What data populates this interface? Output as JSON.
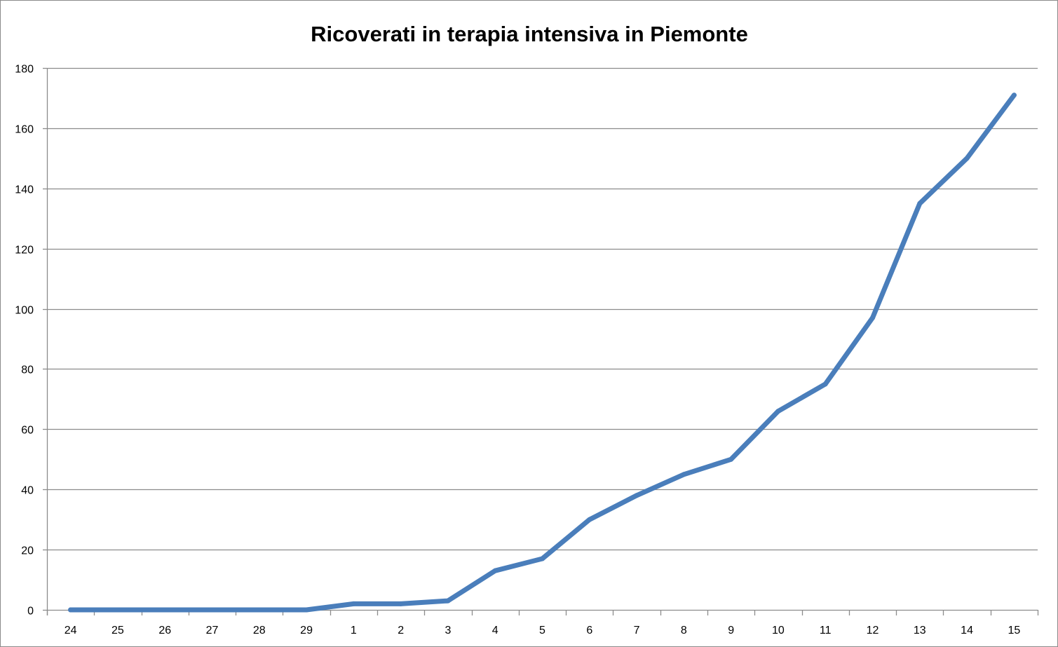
{
  "chart_data": {
    "type": "line",
    "title": "Ricoverati in terapia intensiva in Piemonte",
    "xlabel": "",
    "ylabel": "",
    "categories": [
      "24",
      "25",
      "26",
      "27",
      "28",
      "29",
      "1",
      "2",
      "3",
      "4",
      "5",
      "6",
      "7",
      "8",
      "9",
      "10",
      "11",
      "12",
      "13",
      "14",
      "15"
    ],
    "series": [
      {
        "values": [
          0,
          0,
          0,
          0,
          0,
          0,
          2,
          2,
          3,
          13,
          17,
          30,
          38,
          45,
          50,
          66,
          75,
          97,
          135,
          150,
          171
        ],
        "color": "#4a7ebb"
      }
    ],
    "ylim": [
      0,
      180
    ],
    "yticks": [
      0,
      20,
      40,
      60,
      80,
      100,
      120,
      140,
      160,
      180
    ],
    "grid": true,
    "legend": "none",
    "colors": {
      "line": "#4a7ebb",
      "grid": "#8c8c8c",
      "axis": "#8c8c8c",
      "border": "#8a8a8a"
    }
  }
}
